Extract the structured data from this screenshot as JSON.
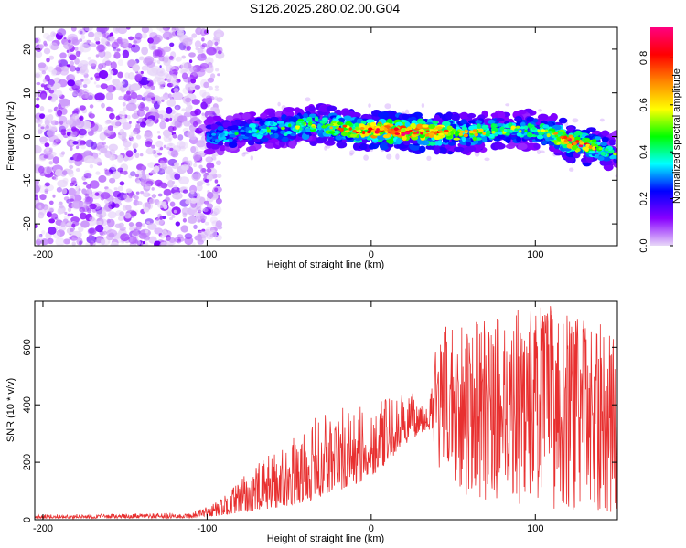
{
  "figure_title": "S126.2025.280.02.00.G04",
  "chart_data": [
    {
      "type": "heatmap",
      "name": "spectrogram",
      "xlabel": "Height of straight line (km)",
      "ylabel": "Frequency (Hz)",
      "xlim": [
        -205,
        150
      ],
      "ylim": [
        -25,
        25
      ],
      "xticks": [
        -200,
        -100,
        0,
        100
      ],
      "yticks": [
        -20,
        -10,
        0,
        10,
        20
      ],
      "colorbar": {
        "label": "Normalized spectral amplitude",
        "range": [
          0,
          0.93
        ],
        "ticks": [
          "0.0",
          "0.2",
          "0.4",
          "0.6",
          "0.8"
        ],
        "tick_values": [
          0.0,
          0.2,
          0.4,
          0.6,
          0.8
        ],
        "colormap": [
          "#e8d8f8",
          "#8800ff",
          "#0000ff",
          "#00ffff",
          "#00ff00",
          "#ffff00",
          "#ff8800",
          "#ff0000",
          "#ff0080"
        ]
      },
      "noise_region_x": [
        -205,
        -100
      ],
      "noise_amplitude_max": 0.15,
      "signal_trace": {
        "x": [
          -100,
          -90,
          -80,
          -70,
          -60,
          -50,
          -40,
          -30,
          -20,
          -10,
          0,
          10,
          20,
          30,
          40,
          50,
          60,
          70,
          80,
          90,
          100,
          110,
          120,
          130,
          140,
          150
        ],
        "freq": [
          0,
          0.5,
          0.8,
          1.2,
          1.6,
          2.0,
          2.5,
          2.8,
          2.0,
          1.5,
          1.5,
          1.3,
          1.0,
          1.0,
          0.9,
          0.8,
          0.8,
          1.0,
          1.3,
          1.6,
          1.5,
          0.5,
          -1.0,
          -2.0,
          -2.8,
          -3.5
        ],
        "peak_amplitude": [
          0.35,
          0.4,
          0.4,
          0.45,
          0.45,
          0.5,
          0.55,
          0.55,
          0.65,
          0.7,
          0.8,
          0.85,
          0.9,
          0.85,
          0.75,
          0.65,
          0.6,
          0.55,
          0.5,
          0.5,
          0.5,
          0.55,
          0.8,
          0.75,
          0.55,
          0.45
        ]
      }
    },
    {
      "type": "line",
      "name": "snr",
      "xlabel": "Height of straight line (km)",
      "ylabel": "SNR (10 * v/v)",
      "xlim": [
        -205,
        150
      ],
      "ylim": [
        0,
        760
      ],
      "xticks": [
        -200,
        -100,
        0,
        100
      ],
      "yticks": [
        0,
        200,
        400,
        600
      ],
      "color": "#e83030",
      "envelope": {
        "x": [
          -205,
          -150,
          -110,
          -100,
          -90,
          -80,
          -70,
          -60,
          -50,
          -40,
          -30,
          -20,
          -10,
          0,
          10,
          20,
          30,
          35,
          40,
          50,
          60,
          70,
          80,
          90,
          100,
          110,
          120,
          130,
          140,
          150
        ],
        "min": [
          5,
          5,
          5,
          10,
          15,
          25,
          30,
          40,
          50,
          60,
          80,
          100,
          120,
          150,
          200,
          260,
          300,
          320,
          150,
          100,
          80,
          60,
          50,
          50,
          40,
          40,
          30,
          30,
          20,
          20
        ],
        "max": [
          18,
          20,
          25,
          45,
          80,
          140,
          190,
          240,
          270,
          320,
          380,
          400,
          380,
          420,
          420,
          440,
          440,
          420,
          640,
          700,
          700,
          690,
          720,
          740,
          750,
          750,
          720,
          700,
          680,
          650
        ]
      }
    }
  ]
}
